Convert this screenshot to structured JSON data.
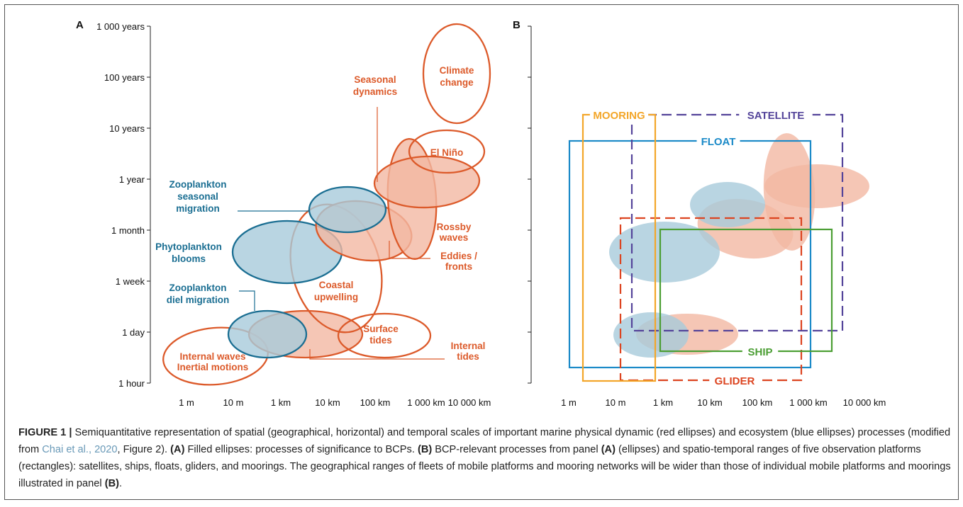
{
  "panels": {
    "a": {
      "letter": "A",
      "y_ticks": [
        "1 000 years",
        "100 years",
        "10 years",
        "1 year",
        "1 month",
        "1 week",
        "1 day",
        "1 hour"
      ],
      "x_ticks": [
        "1 m",
        "10 m",
        "1 km",
        "10 km",
        "100 km",
        "1 000 km",
        "10 000 km"
      ],
      "ellipses": [
        {
          "id": "climate",
          "lines": [
            "Climate",
            "change"
          ],
          "kind": "physical",
          "filled": false
        },
        {
          "id": "seasonal",
          "lines": [
            "Seasonal",
            "dynamics"
          ],
          "kind": "physical",
          "filled": true
        },
        {
          "id": "elnino",
          "lines": [
            "El Niño"
          ],
          "kind": "physical",
          "filled": false
        },
        {
          "id": "rossby",
          "lines": [
            "Rossby",
            "waves"
          ],
          "kind": "physical",
          "filled": true
        },
        {
          "id": "eddies",
          "lines": [
            "Eddies /",
            "fronts"
          ],
          "kind": "physical",
          "filled": true
        },
        {
          "id": "coastal",
          "lines": [
            "Coastal",
            "upwelling"
          ],
          "kind": "physical",
          "filled": false
        },
        {
          "id": "surface",
          "lines": [
            "Surface",
            "tides"
          ],
          "kind": "physical",
          "filled": false
        },
        {
          "id": "internal_tides",
          "lines": [
            "Internal",
            "tides"
          ],
          "kind": "physical",
          "filled": true
        },
        {
          "id": "internal_waves",
          "lines": [
            "Internal waves",
            "Inertial motions"
          ],
          "kind": "physical",
          "filled": false
        },
        {
          "id": "zoo_seasonal",
          "lines": [
            "Zooplankton",
            "seasonal",
            "migration"
          ],
          "kind": "ecosystem",
          "filled": true
        },
        {
          "id": "phyto",
          "lines": [
            "Phytoplankton",
            "blooms"
          ],
          "kind": "ecosystem",
          "filled": true
        },
        {
          "id": "zoo_diel",
          "lines": [
            "Zooplankton",
            "diel migration"
          ],
          "kind": "ecosystem",
          "filled": true
        }
      ]
    },
    "b": {
      "letter": "B",
      "x_ticks": [
        "1 m",
        "10 m",
        "1 km",
        "10 km",
        "100 km",
        "1 000 km",
        "10 000 km"
      ],
      "platforms": {
        "mooring": "MOORING",
        "satellite": "SATELLITE",
        "float": "FLOAT",
        "ship": "SHIP",
        "glider": "GLIDER"
      }
    }
  },
  "colors": {
    "physical": "#dc5a2a",
    "physical_fill": "#f2b8a2",
    "ecosystem": "#1a6e92",
    "ecosystem_fill": "#a7cbdb",
    "mooring": "#f3a629",
    "satellite": "#54449a",
    "float": "#1b8ac8",
    "ship": "#4b9e34",
    "glider": "#dc4420"
  },
  "caption": {
    "figure_label": "FIGURE 1 |",
    "part1": " Semiquantitative representation of spatial (geographical, horizontal) and temporal scales of important marine physical dynamic (red ellipses) and ecosystem (blue ellipses) processes (modified from ",
    "citation": "Chai et al., 2020",
    "part2": ", Figure 2). ",
    "a_label": "(A)",
    "part3": " Filled ellipses: processes of significance to BCPs. ",
    "b_label": "(B)",
    "part4": " BCP-relevant processes from panel ",
    "a_label2": "(A)",
    "part5": " (ellipses) and spatio-temporal ranges of five observation platforms (rectangles): satellites, ships, floats, gliders, and moorings. The geographical ranges of fleets of mobile platforms and mooring networks will be wider than those of individual mobile platforms and moorings illustrated in panel ",
    "b_label2": "(B)",
    "part6": "."
  }
}
